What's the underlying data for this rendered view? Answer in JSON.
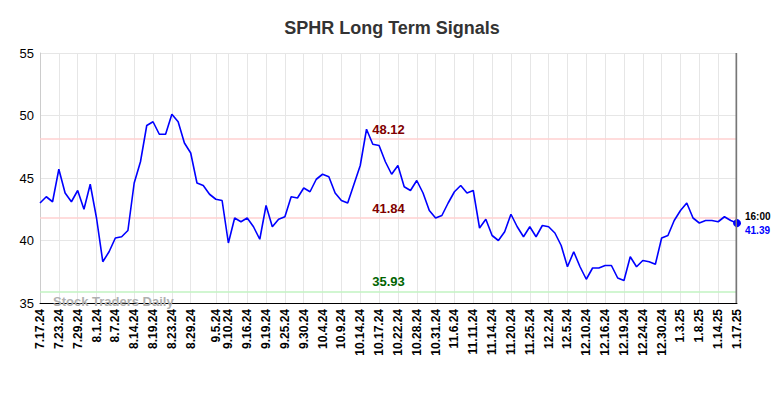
{
  "chart_data": {
    "type": "line",
    "title": "SPHR Long Term Signals",
    "watermark": "Stock Traders Daily",
    "end_label": "16:00",
    "color": "#0000ff",
    "grid": true,
    "ylim": [
      35,
      55
    ],
    "yticks": [
      35,
      40,
      45,
      50,
      55
    ],
    "levels": [
      {
        "value": 48.12,
        "color": "#800000"
      },
      {
        "value": 41.84,
        "color": "#800000"
      },
      {
        "value": 35.93,
        "color": "#006400"
      }
    ],
    "categories": [
      "7.17.24",
      null,
      null,
      "7.23.24",
      null,
      null,
      "7.29.24",
      null,
      null,
      "8.1.24",
      null,
      null,
      "8.7.24",
      null,
      null,
      "8.14.24",
      null,
      null,
      "8.19.24",
      null,
      null,
      "8.23.24",
      null,
      null,
      "8.29.24",
      null,
      null,
      null,
      "9.5.24",
      null,
      "9.10.24",
      null,
      null,
      "9.16.24",
      null,
      null,
      "9.19.24",
      null,
      null,
      "9.25.24",
      null,
      null,
      "9.30.24",
      null,
      null,
      "10.4.24",
      null,
      null,
      "10.9.24",
      null,
      null,
      "10.14.24",
      null,
      null,
      "10.17.24",
      null,
      null,
      "10.22.24",
      null,
      null,
      "10.28.24",
      null,
      null,
      "10.31.24",
      null,
      null,
      "11.6.24",
      null,
      null,
      "11.11.24",
      null,
      null,
      "11.14.24",
      null,
      null,
      "11.20.24",
      null,
      null,
      "11.25.24",
      null,
      null,
      "12.2.24",
      null,
      null,
      "12.5.24",
      null,
      null,
      "12.10.24",
      null,
      null,
      "12.16.24",
      null,
      null,
      "12.19.24",
      null,
      null,
      "12.24.24",
      null,
      null,
      "12.30.24",
      null,
      null,
      "1.3.25",
      null,
      null,
      "1.8.25",
      null,
      null,
      "1.14.25",
      null,
      null,
      "1.17.25"
    ],
    "values": [
      43.0,
      43.5,
      43.1,
      45.7,
      43.8,
      43.1,
      44.0,
      42.5,
      44.5,
      41.8,
      38.3,
      39.1,
      40.2,
      40.3,
      40.8,
      44.6,
      46.3,
      49.2,
      49.5,
      48.5,
      48.5,
      50.1,
      49.5,
      47.8,
      47.0,
      44.6,
      44.4,
      43.7,
      43.3,
      43.2,
      39.8,
      41.8,
      41.5,
      41.8,
      41.1,
      40.1,
      42.8,
      41.1,
      41.7,
      41.9,
      43.5,
      43.4,
      44.2,
      43.9,
      44.9,
      45.3,
      45.1,
      43.8,
      43.2,
      43.0,
      44.5,
      46.0,
      48.9,
      47.7,
      47.6,
      46.3,
      45.3,
      46.0,
      44.3,
      44.0,
      44.8,
      43.8,
      42.4,
      41.8,
      42.0,
      43.0,
      43.9,
      44.4,
      43.8,
      44.0,
      41.0,
      41.7,
      40.4,
      40.0,
      40.7,
      42.1,
      41.1,
      40.3,
      41.1,
      40.3,
      41.2,
      41.1,
      40.6,
      39.6,
      37.9,
      39.1,
      37.9,
      36.9,
      37.8,
      37.8,
      38.0,
      38.0,
      37.0,
      36.8,
      38.7,
      37.9,
      38.4,
      38.3,
      38.1,
      40.2,
      40.4,
      41.6,
      42.4,
      43.0,
      41.8,
      41.4,
      41.6,
      41.6,
      41.5,
      41.9,
      41.6,
      41.39
    ]
  }
}
